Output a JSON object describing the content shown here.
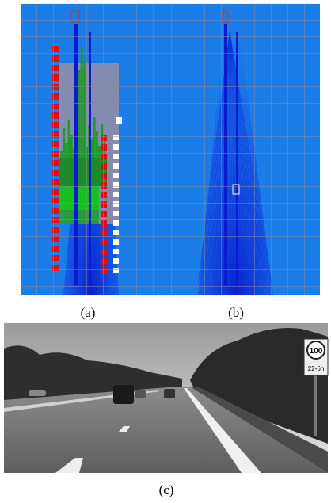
{
  "figure": {
    "panels": [
      {
        "caption": "(a)"
      },
      {
        "caption": "(b)"
      },
      {
        "caption": "(c)",
        "sign": {
          "speed": "100",
          "plate": "22-6h"
        }
      }
    ]
  }
}
